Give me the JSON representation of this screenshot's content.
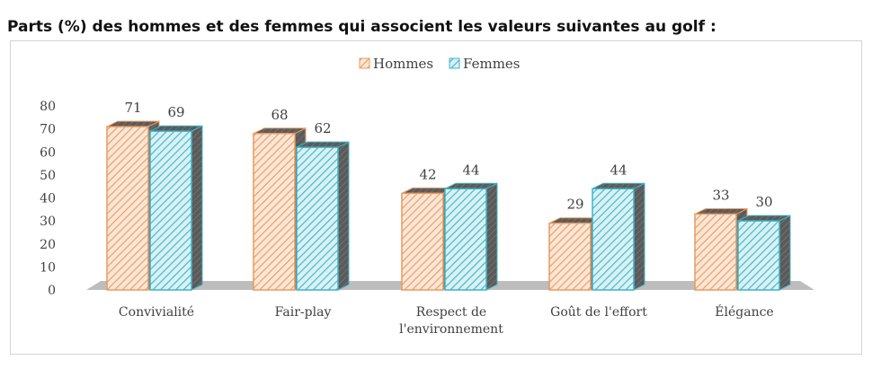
{
  "title": "Parts (%) des hommes et des femmes qui associent les valeurs suivantes au golf :",
  "colors": {
    "hommes_stroke": "#e99a5e",
    "hommes_fill": "#fbe6d6",
    "femmes_stroke": "#3fb4c6",
    "femmes_fill": "#d8f1f5",
    "floor": "#bdbdbd",
    "text": "#404040"
  },
  "chart_data": {
    "type": "bar",
    "title": "Parts (%) des hommes et des femmes qui associent les valeurs suivantes au golf :",
    "categories": [
      "Convivialité",
      "Fair-play",
      "Respect de l'environnement",
      "Goût de l'effort",
      "Élégance"
    ],
    "category_lines": [
      [
        "Convivialité"
      ],
      [
        "Fair-play"
      ],
      [
        "Respect de",
        "l'environnement"
      ],
      [
        "Goût de l'effort"
      ],
      [
        "Élégance"
      ]
    ],
    "series": [
      {
        "name": "Hommes",
        "values": [
          71,
          68,
          42,
          29,
          33
        ]
      },
      {
        "name": "Femmes",
        "values": [
          69,
          62,
          44,
          44,
          30
        ]
      }
    ],
    "y_ticks": [
      0,
      10,
      20,
      30,
      40,
      50,
      60,
      70,
      80
    ],
    "ylim": [
      0,
      80
    ],
    "style": "3d-bar-hatched",
    "legend_position": "top-center",
    "grid": false
  }
}
